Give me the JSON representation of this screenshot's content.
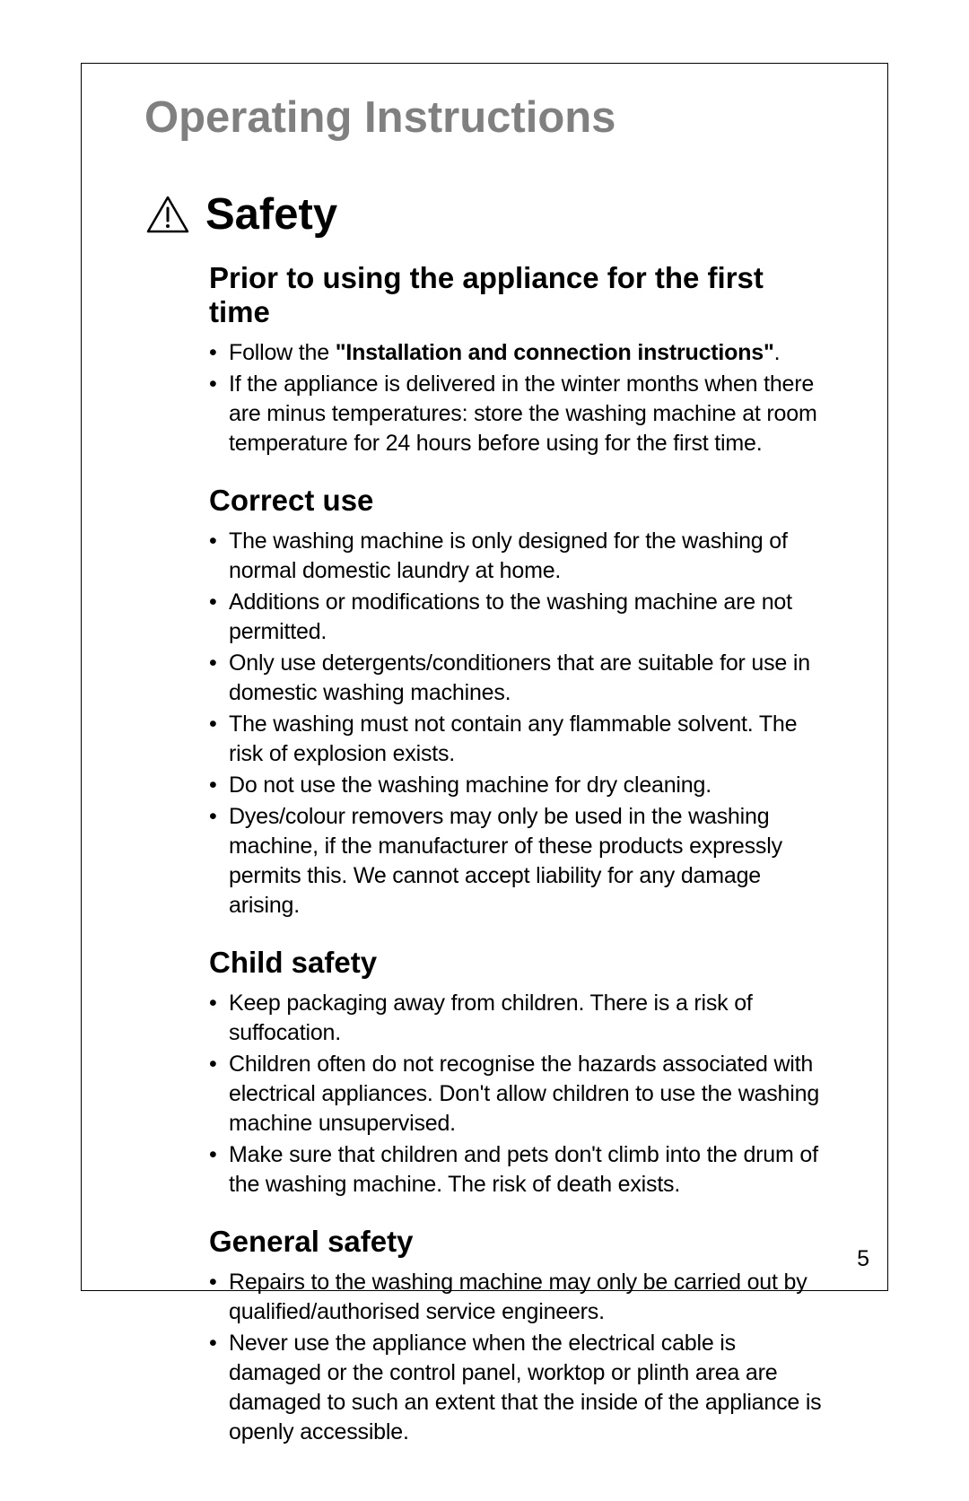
{
  "page": {
    "main_title": "Operating Instructions",
    "section_title": "Safety",
    "page_number": "5",
    "colors": {
      "title_gray": "#808080",
      "text_black": "#000000",
      "border_black": "#000000",
      "background": "#ffffff"
    },
    "typography": {
      "main_title_size": 49,
      "section_title_size": 49,
      "subsection_title_size": 33,
      "body_size": 25,
      "line_height": 1.32
    }
  },
  "subsections": [
    {
      "title": "Prior to using the appliance for the first time",
      "items": [
        {
          "prefix": "Follow the ",
          "bold": "\"Installation and connection instructions\"",
          "suffix": "."
        },
        {
          "text": "If the appliance is delivered in the winter months when there are minus temperatures: store the washing machine at room temperature for 24 hours before using for the first time."
        }
      ]
    },
    {
      "title": "Correct use",
      "items": [
        {
          "text": "The washing machine is only designed for the washing of normal domestic laundry at home."
        },
        {
          "text": "Additions or modifications to the washing machine are not permitted."
        },
        {
          "text": "Only use detergents/conditioners that are suitable for use in domestic washing machines."
        },
        {
          "text": "The washing must not contain any flammable solvent. The risk of explosion exists."
        },
        {
          "text": "Do not use the washing machine for dry cleaning."
        },
        {
          "text": "Dyes/colour removers may only be used in the washing machine, if the manufacturer of these products expressly permits this. We cannot accept liability for any damage arising."
        }
      ]
    },
    {
      "title": "Child safety",
      "items": [
        {
          "text": "Keep packaging away from children. There is a risk of suffocation."
        },
        {
          "text": "Children often do not recognise the hazards associated with electrical appliances. Don't allow children to use the washing machine unsupervised."
        },
        {
          "text": "Make sure that children and pets don't climb into the drum of the washing machine. The risk of death exists."
        }
      ]
    },
    {
      "title": "General safety",
      "items": [
        {
          "text": "Repairs to the washing machine may only be carried out by qualified/authorised service engineers."
        },
        {
          "text": "Never use the appliance when the electrical cable is damaged or the control panel, worktop or plinth area are damaged to such an extent that the inside of the appliance is openly accessible."
        }
      ]
    }
  ]
}
